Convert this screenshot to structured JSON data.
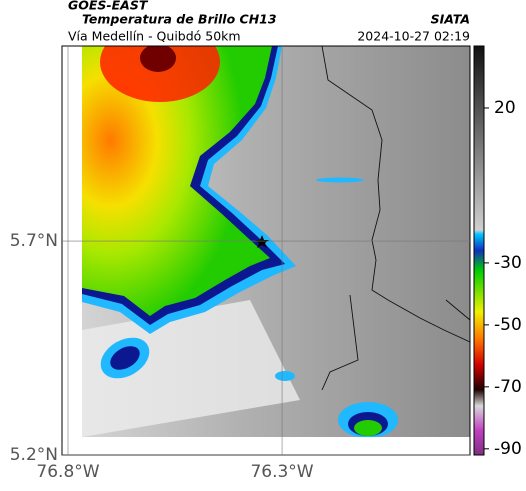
{
  "header": {
    "satellite": "GOES-EAST",
    "product": "Temperatura de Brillo CH13",
    "agency": "SIATA",
    "subtitle": "Vía Medellín - Quibdó 50km",
    "timestamp": "2024-10-27 02:19"
  },
  "map": {
    "lat_lim": [
      5.2,
      6.156
    ],
    "lon_lim": [
      -76.814,
      -75.861
    ],
    "lat_ticks": [
      {
        "value": 5.7,
        "label": "5.7°N"
      },
      {
        "value": 5.2,
        "label": "5.2°N"
      }
    ],
    "lon_ticks": [
      {
        "value": -76.8,
        "label": "76.8°W"
      },
      {
        "value": -76.3,
        "label": "76.3°W"
      }
    ]
  },
  "colorbar": {
    "lim": [
      -92,
      40
    ],
    "ticks": [
      20,
      -30,
      -50,
      -70,
      -90
    ]
  }
}
